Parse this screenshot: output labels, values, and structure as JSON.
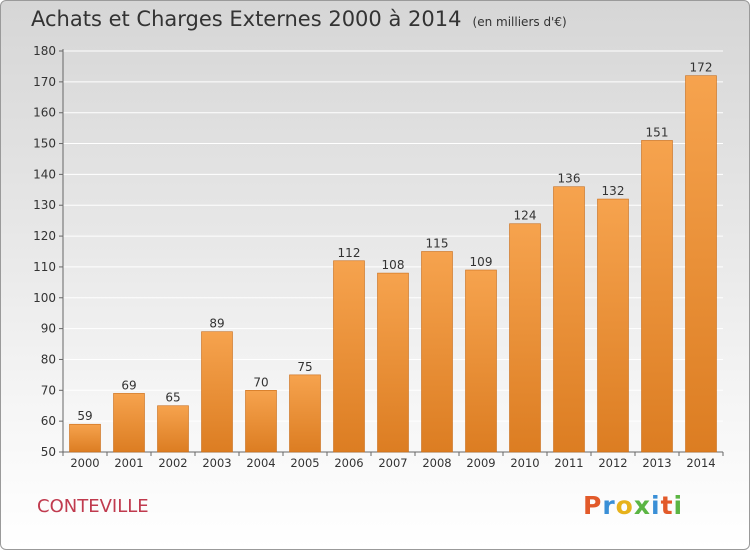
{
  "title": "Achats et Charges Externes 2000 à 2014",
  "subtitle": "(en milliers d'€)",
  "commune": "CONTEVILLE",
  "logo": {
    "text": "Proxiti",
    "colors": [
      "#e25a2a",
      "#3a8fd6",
      "#e7b21b",
      "#5bb543",
      "#3a8fd6",
      "#e25a2a",
      "#5bb543"
    ]
  },
  "colors": {
    "bar_top": "#f6a34e",
    "bar_bottom": "#dc7d22",
    "bar_edge": "#c96d1a",
    "grid": "#ffffff",
    "text": "#333333"
  },
  "chart_data": {
    "type": "bar",
    "categories": [
      "2000",
      "2001",
      "2002",
      "2003",
      "2004",
      "2005",
      "2006",
      "2007",
      "2008",
      "2009",
      "2010",
      "2011",
      "2012",
      "2013",
      "2014"
    ],
    "values": [
      59,
      69,
      65,
      89,
      70,
      75,
      112,
      108,
      115,
      109,
      124,
      136,
      132,
      151,
      172
    ],
    "ylim": [
      50,
      180
    ],
    "yticks": [
      50,
      60,
      70,
      80,
      90,
      100,
      110,
      120,
      130,
      140,
      150,
      160,
      170,
      180
    ],
    "grid": true
  }
}
